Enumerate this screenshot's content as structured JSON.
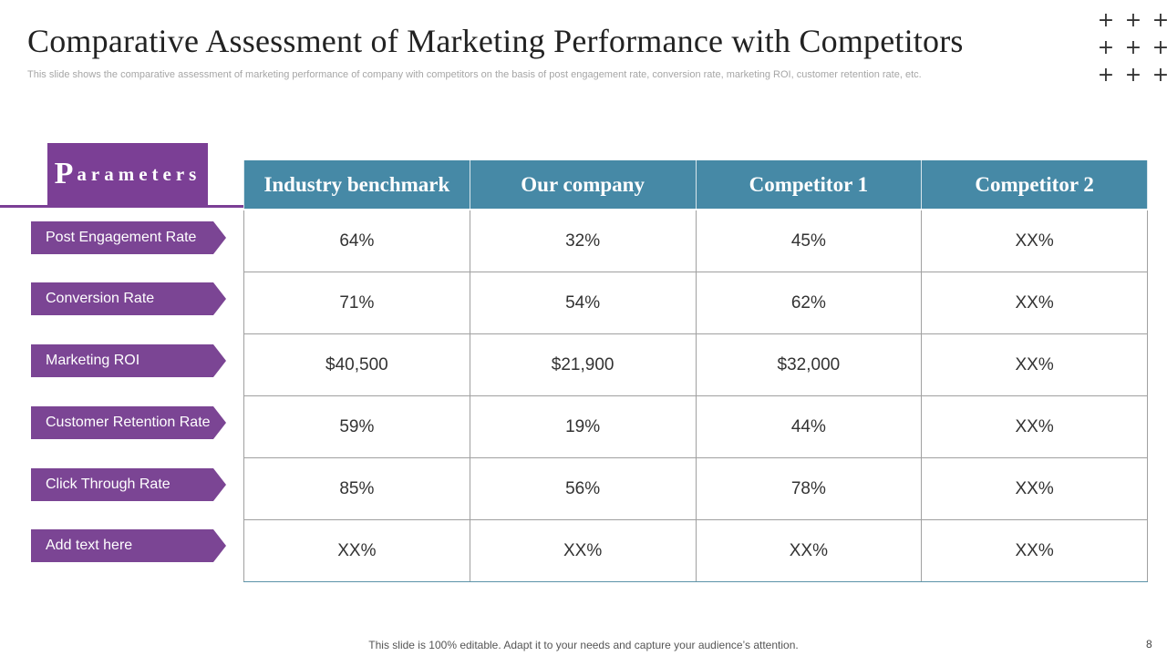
{
  "slide": {
    "title": "Comparative Assessment of Marketing Performance with Competitors",
    "subtitle": "This slide shows the comparative assessment of marketing performance of company with competitors on the basis of post engagement rate, conversion rate, marketing ROI, customer retention rate, etc.",
    "footer": "This slide is 100% editable. Adapt it to your needs and capture your audience’s attention.",
    "page_number": "8"
  },
  "decor": {
    "plus_symbol": "+"
  },
  "parameters": {
    "header_first": "P",
    "header_rest": "arameters",
    "items": [
      "Post Engagement Rate",
      "Conversion Rate",
      "Marketing ROI",
      "Customer Retention Rate",
      "Click Through  Rate",
      "Add text here"
    ]
  },
  "table": {
    "columns": [
      "Industry benchmark",
      "Our company",
      "Competitor 1",
      "Competitor 2"
    ],
    "rows": [
      [
        "64%",
        "32%",
        "45%",
        "XX%"
      ],
      [
        "71%",
        "54%",
        "62%",
        "XX%"
      ],
      [
        "$40,500",
        "$21,900",
        "$32,000",
        "XX%"
      ],
      [
        "59%",
        "19%",
        "44%",
        "XX%"
      ],
      [
        "85%",
        "56%",
        "78%",
        "XX%"
      ],
      [
        "XX%",
        "XX%",
        "XX%",
        "XX%"
      ]
    ]
  },
  "colors": {
    "parameter_purple": "#7b4594",
    "table_header_teal": "#4689a6"
  }
}
